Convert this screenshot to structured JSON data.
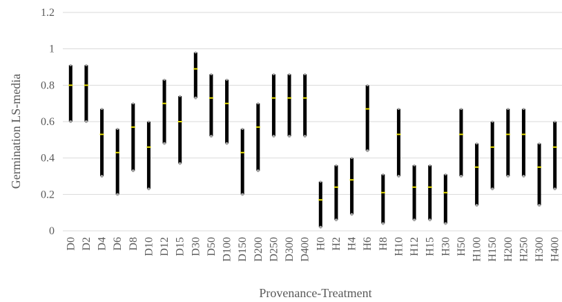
{
  "chart_data": {
    "type": "range",
    "title": "",
    "xlabel": "Provenance-Treatment",
    "ylabel": "Germination LS-media",
    "ylim": [
      0,
      1.2
    ],
    "yticks": [
      "0",
      "0.2",
      "0.4",
      "0.6",
      "0.8",
      "1",
      "1.2"
    ],
    "grid": true,
    "categories": [
      "D0",
      "D2",
      "D4",
      "D6",
      "D8",
      "D10",
      "D12",
      "D15",
      "D30",
      "D50",
      "D100",
      "D150",
      "D200",
      "D250",
      "D300",
      "D400",
      "H0",
      "H2",
      "H4",
      "H6",
      "H8",
      "H10",
      "H12",
      "H15",
      "H30",
      "H50",
      "H100",
      "H150",
      "H200",
      "H250",
      "H300",
      "H400"
    ],
    "series": [
      {
        "name": "",
        "values": [
          0.91,
          0.91,
          0.67,
          0.56,
          0.7,
          0.6,
          0.83,
          0.74,
          0.98,
          0.86,
          0.83,
          0.56,
          0.7,
          0.86,
          0.86,
          0.86,
          0.27,
          0.36,
          0.4,
          0.8,
          0.31,
          0.67,
          0.36,
          0.36,
          0.31,
          0.67,
          0.48,
          0.6,
          0.67,
          0.67,
          0.48,
          0.6
        ]
      },
      {
        "name": "",
        "values": [
          0.8,
          0.8,
          0.53,
          0.43,
          0.57,
          0.46,
          0.7,
          0.6,
          0.89,
          0.73,
          0.7,
          0.43,
          0.57,
          0.73,
          0.73,
          0.73,
          0.17,
          0.24,
          0.28,
          0.67,
          0.21,
          0.53,
          0.24,
          0.24,
          0.21,
          0.53,
          0.35,
          0.46,
          0.53,
          0.53,
          0.35,
          0.46
        ]
      },
      {
        "name": "",
        "values": [
          0.6,
          0.6,
          0.3,
          0.2,
          0.33,
          0.23,
          0.48,
          0.37,
          0.73,
          0.52,
          0.48,
          0.2,
          0.33,
          0.52,
          0.52,
          0.52,
          0.02,
          0.06,
          0.09,
          0.44,
          0.04,
          0.3,
          0.06,
          0.06,
          0.04,
          0.3,
          0.14,
          0.23,
          0.3,
          0.3,
          0.14,
          0.23
        ]
      }
    ],
    "colors": {
      "range": "#000000",
      "mean": "#e8e000",
      "endpoint": "#a6a6a6",
      "grid": "#d9d9d9",
      "text": "#595959"
    }
  }
}
